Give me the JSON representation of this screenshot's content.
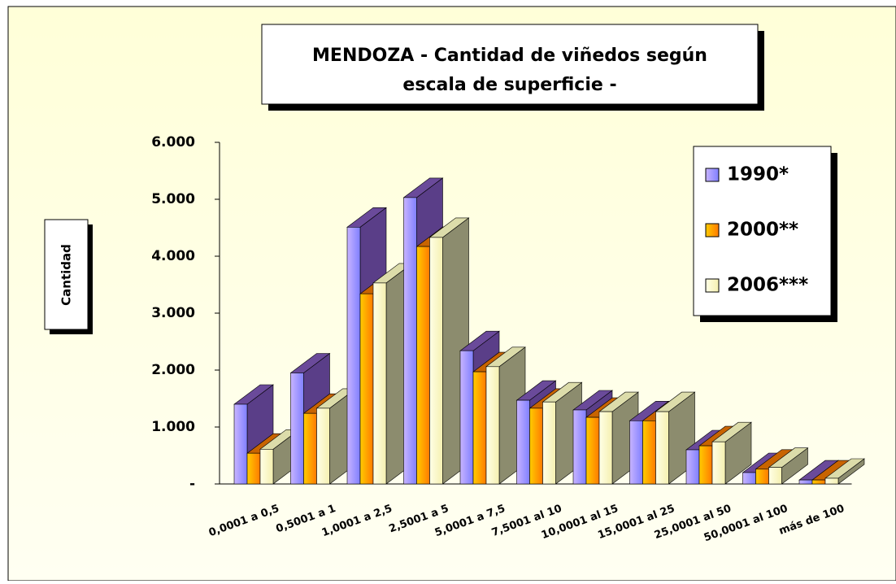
{
  "chart_data": {
    "type": "bar3d",
    "title": [
      "MENDOZA - Cantidad de viñedos según",
      "escala de superficie -"
    ],
    "y_label": "Cantidad",
    "categories": [
      "0,0001 a 0,5",
      "0,5001 a 1",
      "1,0001 a 2,5",
      "2,5001 a 5",
      "5,0001 a 7,5",
      "7,5001 al 10",
      "10,0001 al 15",
      "15,0001 al 25",
      "25,0001 al 50",
      "50,0001 al 100",
      "más de 100"
    ],
    "series": [
      {
        "name": "1990*",
        "color": "#9a9aff",
        "values": [
          1400,
          1950,
          4510,
          5030,
          2340,
          1470,
          1300,
          1110,
          600,
          200,
          70
        ]
      },
      {
        "name": "2000**",
        "color": "#ff9900",
        "values": [
          540,
          1240,
          3340,
          4170,
          1970,
          1330,
          1170,
          1110,
          670,
          260,
          70
        ]
      },
      {
        "name": "2006***",
        "color": "#ffffcc",
        "values": [
          610,
          1330,
          3530,
          4330,
          2060,
          1440,
          1270,
          1270,
          740,
          290,
          100
        ]
      }
    ],
    "ylim": [
      0,
      6000
    ],
    "yticks": [
      {
        "value": 0,
        "label": "-"
      },
      {
        "value": 1000,
        "label": "1.000"
      },
      {
        "value": 2000,
        "label": "2.000"
      },
      {
        "value": 3000,
        "label": "3.000"
      },
      {
        "value": 4000,
        "label": "4.000"
      },
      {
        "value": 5000,
        "label": "5.000"
      },
      {
        "value": 6000,
        "label": "6.000"
      }
    ],
    "legend": "right"
  }
}
